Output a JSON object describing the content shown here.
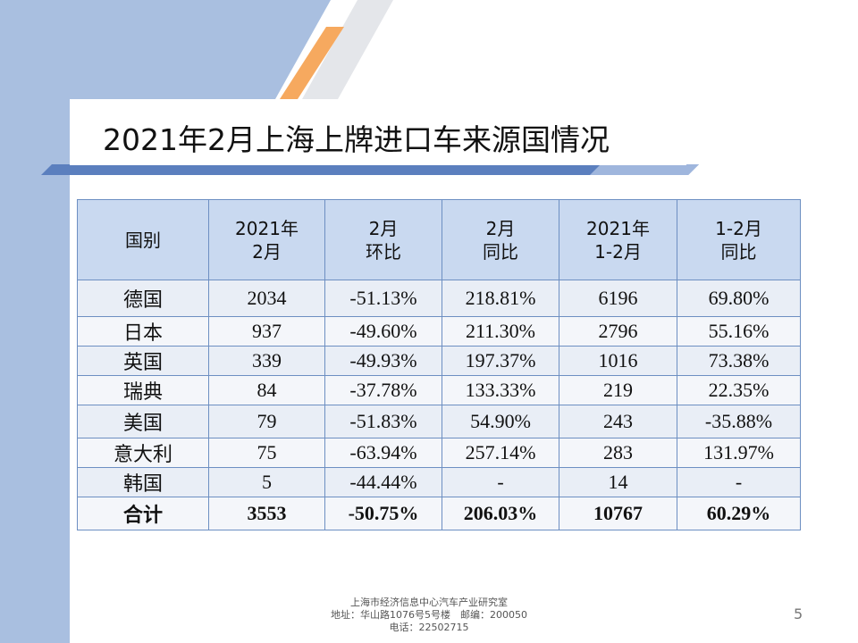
{
  "title": "2021年2月上海上牌进口车来源国情况",
  "table": {
    "headers": [
      [
        "国别"
      ],
      [
        "2021年",
        "2月"
      ],
      [
        "2月",
        "环比"
      ],
      [
        "2月",
        "同比"
      ],
      [
        "2021年",
        "1-2月"
      ],
      [
        "1-2月",
        "同比"
      ]
    ],
    "rows": [
      [
        "德国",
        "2034",
        "-51.13%",
        "218.81%",
        "6196",
        "69.80%"
      ],
      [
        "日本",
        "937",
        "-49.60%",
        "211.30%",
        "2796",
        "55.16%"
      ],
      [
        "英国",
        "339",
        "-49.93%",
        "197.37%",
        "1016",
        "73.38%"
      ],
      [
        "瑞典",
        "84",
        "-37.78%",
        "133.33%",
        "219",
        "22.35%"
      ],
      [
        "美国",
        "79",
        "-51.83%",
        "54.90%",
        "243",
        "-35.88%"
      ],
      [
        "意大利",
        "75",
        "-63.94%",
        "257.14%",
        "283",
        "131.97%"
      ],
      [
        "韩国",
        "5",
        "-44.44%",
        "-",
        "14",
        "-"
      ],
      [
        "合计",
        "3553",
        "-50.75%",
        "206.03%",
        "10767",
        "60.29%"
      ]
    ]
  },
  "footer": {
    "line1": "上海市经济信息中心汽车产业研究室",
    "line2": "地址：华山路1076号5号楼　邮编：200050",
    "line3": "电话：22502715"
  },
  "page_number": "5",
  "colors": {
    "left_band": "#a9bfe0",
    "accent_orange": "#f6a95f",
    "header_fill": "#c9d9f0",
    "divider_blue": "#5b7fbe"
  }
}
